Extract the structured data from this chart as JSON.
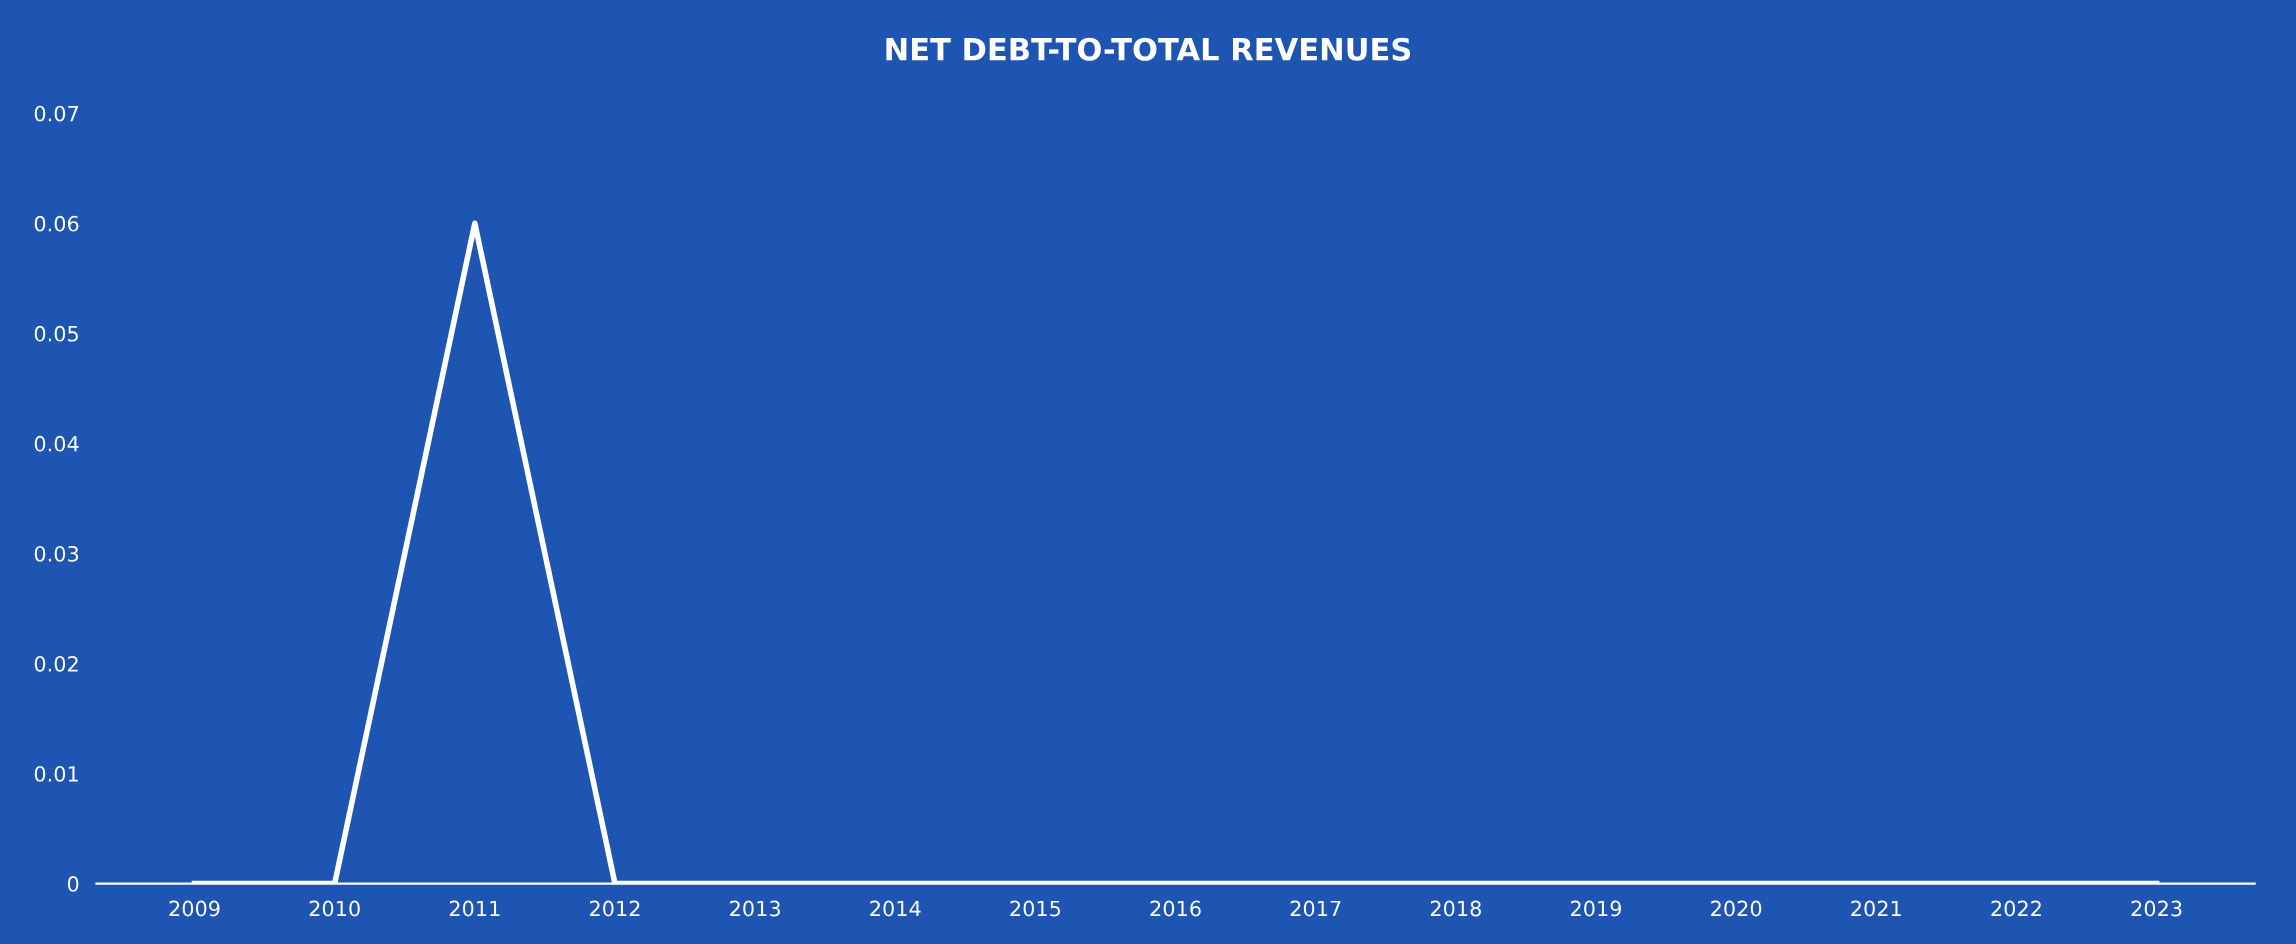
{
  "chart_data": {
    "type": "line",
    "title": "NET DEBT-TO-TOTAL REVENUES",
    "categories": [
      "2009",
      "2010",
      "2011",
      "2012",
      "2013",
      "2014",
      "2015",
      "2016",
      "2017",
      "2018",
      "2019",
      "2020",
      "2021",
      "2022",
      "2023"
    ],
    "series": [
      {
        "color": "#ffffff",
        "values": [
          0,
          0,
          0.06,
          0,
          0,
          0,
          0,
          0,
          0,
          0,
          0,
          0,
          0,
          0,
          0
        ]
      }
    ],
    "ylim": [
      0,
      0.07
    ],
    "yticks": [
      0,
      0.01,
      0.02,
      0.03,
      0.04,
      0.05,
      0.06,
      0.07
    ],
    "grid": false,
    "legend": false,
    "marker": "none",
    "line_style": "solid"
  }
}
